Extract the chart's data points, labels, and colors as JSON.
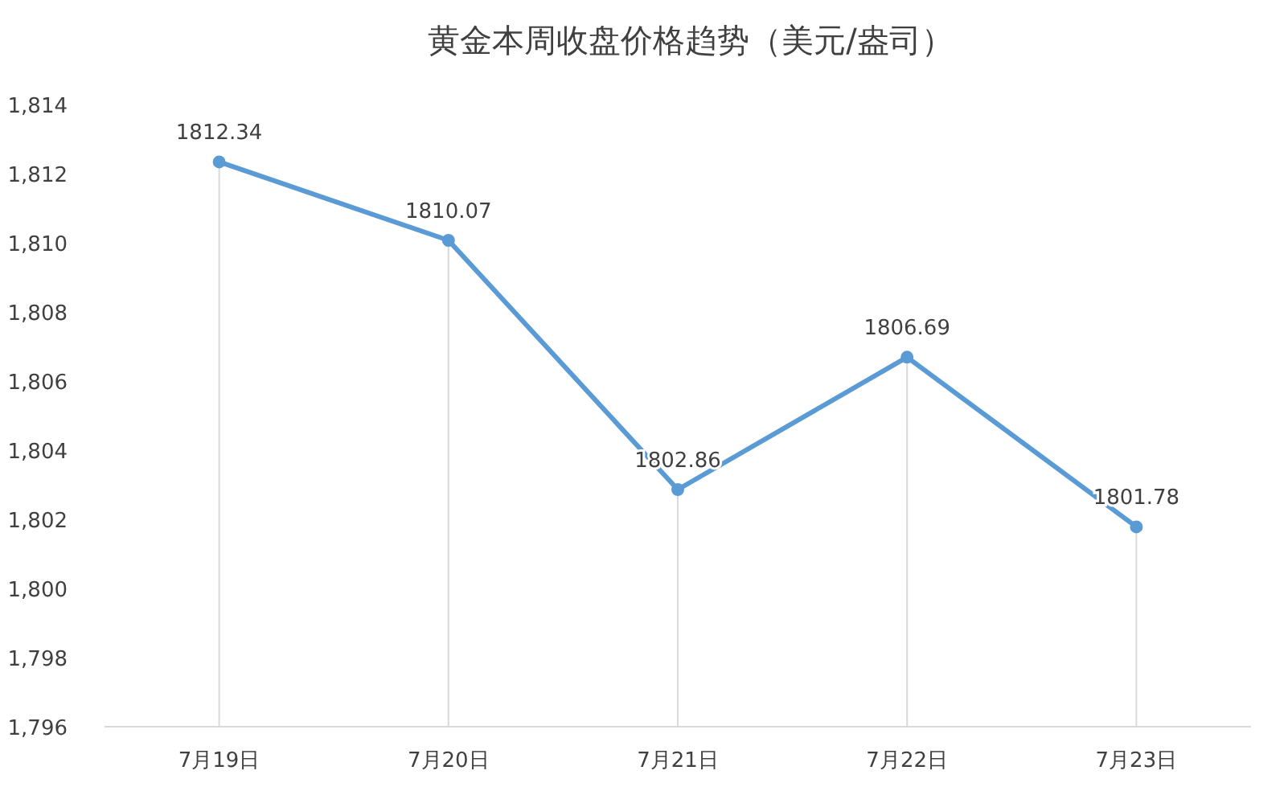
{
  "chart_data": {
    "type": "line",
    "title": "黄金本周收盘价格趋势（美元/盎司）",
    "categories": [
      "7月19日",
      "7月20日",
      "7月21日",
      "7月22日",
      "7月23日"
    ],
    "series": [
      {
        "color": "#5b9bd5",
        "values": [
          1812.34,
          1810.07,
          1802.86,
          1806.69,
          1801.78
        ]
      }
    ],
    "ylim": [
      1796,
      1814
    ],
    "yticks": [
      {
        "value": 1796,
        "label": "1,796"
      },
      {
        "value": 1798,
        "label": "1,798"
      },
      {
        "value": 1800,
        "label": "1,800"
      },
      {
        "value": 1802,
        "label": "1,802"
      },
      {
        "value": 1804,
        "label": "1,804"
      },
      {
        "value": 1806,
        "label": "1,806"
      },
      {
        "value": 1808,
        "label": "1,808"
      },
      {
        "value": 1810,
        "label": "1,810"
      },
      {
        "value": 1812,
        "label": "1,812"
      },
      {
        "value": 1814,
        "label": "1,814"
      }
    ],
    "grid": "x",
    "marker": "circle",
    "line_style": "solid",
    "data_labels": true
  }
}
